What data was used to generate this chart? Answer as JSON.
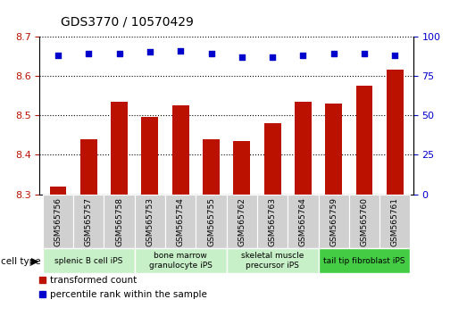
{
  "title": "GDS3770 / 10570429",
  "samples": [
    "GSM565756",
    "GSM565757",
    "GSM565758",
    "GSM565753",
    "GSM565754",
    "GSM565755",
    "GSM565762",
    "GSM565763",
    "GSM565764",
    "GSM565759",
    "GSM565760",
    "GSM565761"
  ],
  "transformed_counts": [
    8.32,
    8.44,
    8.535,
    8.495,
    8.525,
    8.44,
    8.435,
    8.48,
    8.535,
    8.53,
    8.575,
    8.615
  ],
  "percentile_ranks": [
    88,
    89,
    89,
    90,
    91,
    89,
    87,
    87,
    88,
    89,
    89,
    88
  ],
  "ylim_left": [
    8.3,
    8.7
  ],
  "ylim_right": [
    0,
    100
  ],
  "yticks_left": [
    8.3,
    8.4,
    8.5,
    8.6,
    8.7
  ],
  "yticks_right": [
    0,
    25,
    50,
    75,
    100
  ],
  "cell_type_groups": [
    {
      "label": "splenic B cell iPS",
      "start": 0,
      "end": 3,
      "color": "#c8f0c8"
    },
    {
      "label": "bone marrow\ngranulocyte iPS",
      "start": 3,
      "end": 6,
      "color": "#c8f0c8"
    },
    {
      "label": "skeletal muscle\nprecursor iPS",
      "start": 6,
      "end": 9,
      "color": "#c8f0c8"
    },
    {
      "label": "tail tip fibroblast iPS",
      "start": 9,
      "end": 12,
      "color": "#44cc44"
    }
  ],
  "bar_color": "#bb1100",
  "dot_color": "#0000cc",
  "bar_width": 0.55,
  "tick_label_bg": "#d0d0d0",
  "legend_dot_label": "percentile rank within the sample",
  "legend_bar_label": "transformed count",
  "title_fontsize": 10,
  "axis_fontsize": 8
}
